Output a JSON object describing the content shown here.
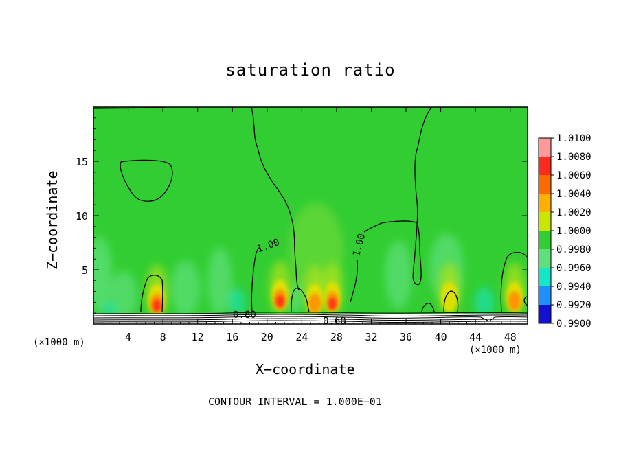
{
  "chart_data": {
    "type": "heatmap",
    "title": "saturation ratio",
    "xlabel": "X−coordinate",
    "ylabel": "Z−coordinate",
    "x_unit": "(×1000 m)",
    "xlim": [
      0,
      50
    ],
    "ylim": [
      0,
      20
    ],
    "x_ticks": [
      4,
      8,
      12,
      16,
      20,
      24,
      28,
      32,
      36,
      40,
      44,
      48
    ],
    "y_ticks": [
      5,
      10,
      15
    ],
    "colorbar": {
      "levels": [
        "1.0100",
        "1.0080",
        "1.0060",
        "1.0040",
        "1.0020",
        "1.0000",
        "0.9980",
        "0.9960",
        "0.9940",
        "0.9920",
        "0.9900"
      ],
      "colors": [
        "#ff9a9a",
        "#ff2a1e",
        "#ff6a00",
        "#ffb000",
        "#c8e600",
        "#32cd32",
        "#5ee07a",
        "#14e6c8",
        "#1e90ff",
        "#1410d2",
        "#7a18b4"
      ]
    },
    "contour_labels": [
      "1.00",
      "1.00",
      "0.80",
      "0.60"
    ],
    "warm_spots": [
      {
        "x": 7.3,
        "z": 1.8,
        "value": 1.008
      },
      {
        "x": 21.5,
        "z": 2.2,
        "value": 1.007
      },
      {
        "x": 27.5,
        "z": 2.0,
        "value": 1.008
      },
      {
        "x": 25.5,
        "z": 1.8,
        "value": 1.005
      },
      {
        "x": 41,
        "z": 2.0,
        "value": 1.003
      },
      {
        "x": 48.5,
        "z": 2.0,
        "value": 1.004
      }
    ],
    "background_value": 1.0,
    "footer": "CONTOUR INTERVAL = 1.000E−01"
  }
}
